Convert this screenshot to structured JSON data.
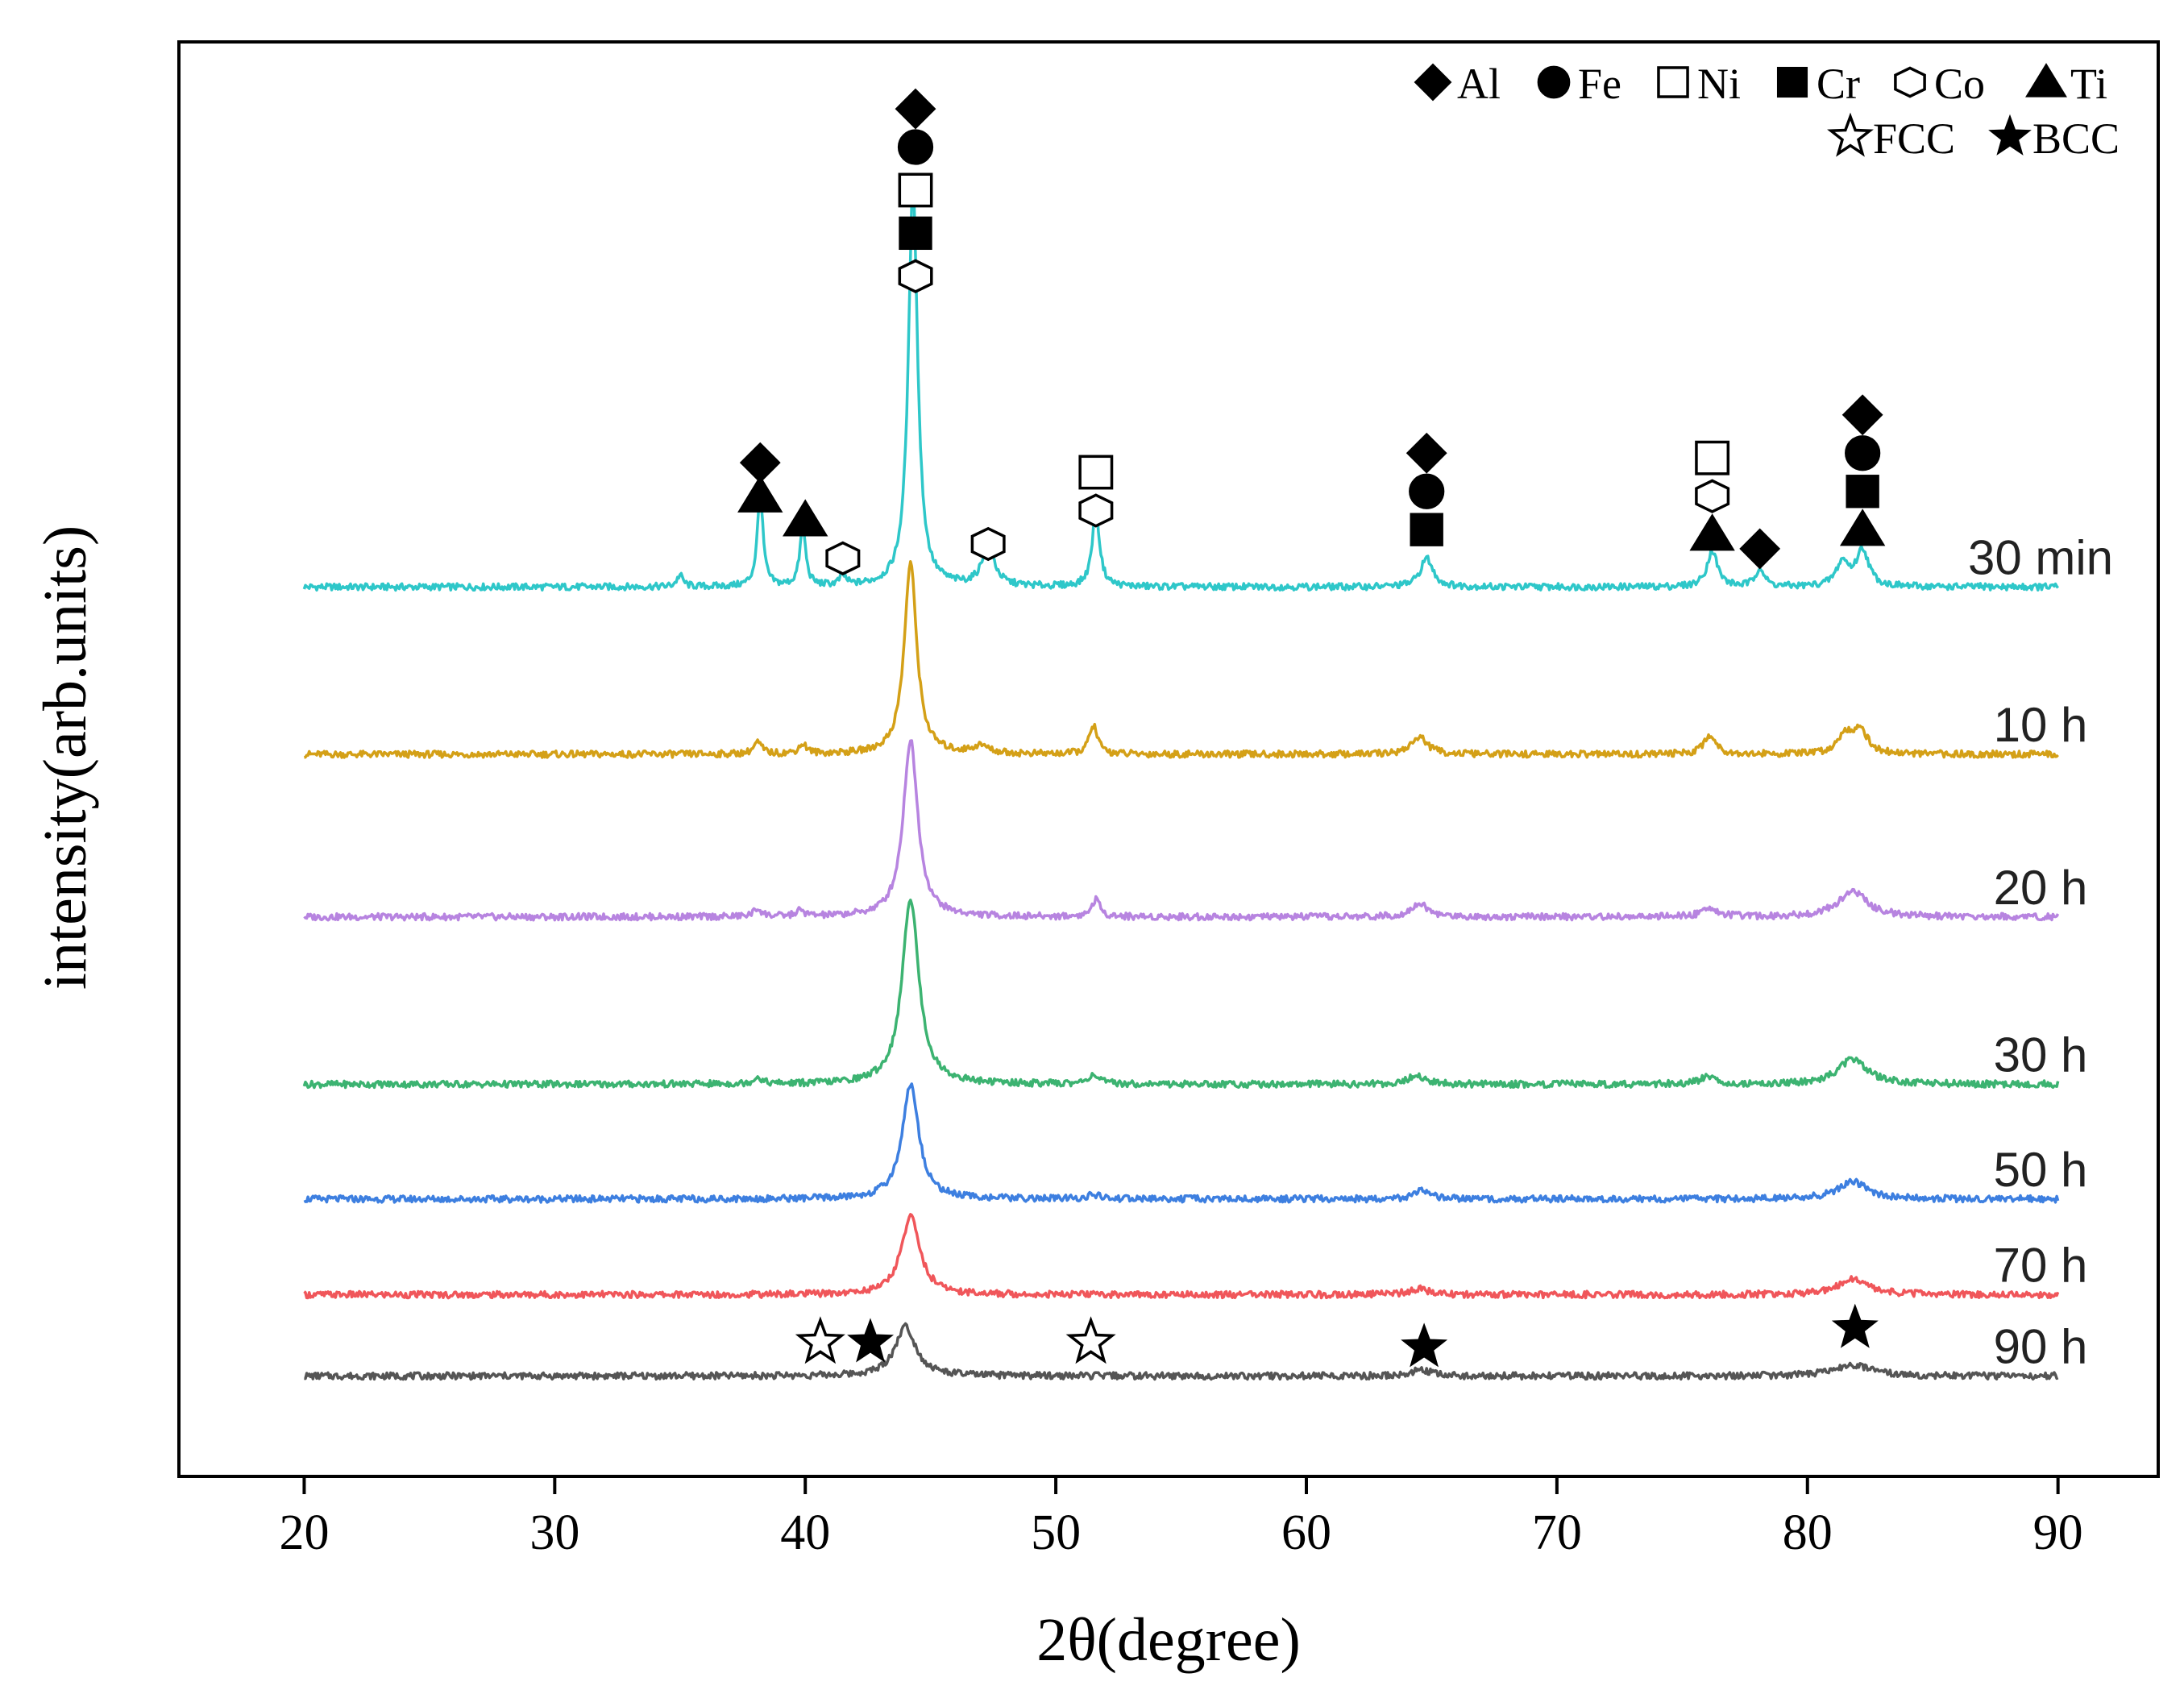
{
  "chart_data": {
    "type": "line",
    "title": "",
    "xlabel": "2θ(degree)",
    "ylabel": "intensity(arb.units)",
    "xlim": [
      15,
      94
    ],
    "x_ticks": [
      20,
      30,
      40,
      50,
      60,
      70,
      80,
      90
    ],
    "y_ticks": [],
    "grid": false,
    "curve_x_range": [
      20,
      90
    ],
    "legend": {
      "placement": "top-right",
      "row1": [
        {
          "symbol": "diamond-filled",
          "label": "Al"
        },
        {
          "symbol": "circle-filled",
          "label": "Fe"
        },
        {
          "symbol": "square-open",
          "label": "Ni"
        },
        {
          "symbol": "square-filled",
          "label": "Cr"
        },
        {
          "symbol": "hexagon-open",
          "label": "Co"
        },
        {
          "symbol": "triangle-filled",
          "label": "Ti"
        }
      ],
      "row2": [
        {
          "symbol": "star-open",
          "label": "FCC"
        },
        {
          "symbol": "star-filled",
          "label": "BCC"
        }
      ]
    },
    "series": [
      {
        "name": "30 min",
        "color": "#2ec7c9",
        "offset": 7.3,
        "peaks": [
          [
            35.0,
            0.12,
            0.15
          ],
          [
            38.2,
            0.95,
            0.14
          ],
          [
            39.9,
            0.62,
            0.14
          ],
          [
            41.5,
            0.1,
            0.15
          ],
          [
            44.3,
            4.2,
            0.22
          ],
          [
            47.3,
            0.42,
            0.3
          ],
          [
            51.6,
            0.78,
            0.18
          ],
          [
            64.8,
            0.3,
            0.3
          ],
          [
            76.2,
            0.38,
            0.25
          ],
          [
            78.1,
            0.2,
            0.2
          ],
          [
            81.4,
            0.25,
            0.3
          ],
          [
            82.2,
            0.38,
            0.3
          ]
        ]
      },
      {
        "name": "10 h",
        "color": "#d4a017",
        "offset": 5.55,
        "peaks": [
          [
            38.1,
            0.12,
            0.2
          ],
          [
            39.9,
            0.1,
            0.2
          ],
          [
            44.2,
            2.0,
            0.3
          ],
          [
            47.0,
            0.08,
            0.4
          ],
          [
            51.5,
            0.3,
            0.2
          ],
          [
            64.5,
            0.18,
            0.4
          ],
          [
            76.1,
            0.2,
            0.3
          ],
          [
            81.5,
            0.2,
            0.35
          ],
          [
            82.1,
            0.25,
            0.35
          ]
        ]
      },
      {
        "name": "20 h",
        "color": "#b784e0",
        "offset": 3.85,
        "peaks": [
          [
            38.1,
            0.08,
            0.2
          ],
          [
            39.8,
            0.06,
            0.2
          ],
          [
            44.2,
            1.85,
            0.35
          ],
          [
            51.6,
            0.18,
            0.2
          ],
          [
            64.5,
            0.14,
            0.4
          ],
          [
            76.1,
            0.1,
            0.35
          ],
          [
            81.8,
            0.27,
            0.7
          ]
        ]
      },
      {
        "name": "30 h",
        "color": "#3cb371",
        "offset": 2.1,
        "peaks": [
          [
            38.1,
            0.07,
            0.2
          ],
          [
            44.2,
            1.95,
            0.4
          ],
          [
            51.5,
            0.1,
            0.25
          ],
          [
            64.4,
            0.09,
            0.4
          ],
          [
            76.0,
            0.08,
            0.35
          ],
          [
            81.8,
            0.26,
            0.7
          ]
        ]
      },
      {
        "name": "50 h",
        "color": "#3d7fe0",
        "offset": 0.9,
        "peaks": [
          [
            44.2,
            1.2,
            0.4
          ],
          [
            51.5,
            0.04,
            0.3
          ],
          [
            64.6,
            0.08,
            0.4
          ],
          [
            81.8,
            0.18,
            0.7
          ]
        ]
      },
      {
        "name": "70 h",
        "color": "#f0565a",
        "offset": -0.1,
        "peaks": [
          [
            44.2,
            0.82,
            0.45
          ],
          [
            64.5,
            0.06,
            0.5
          ],
          [
            81.8,
            0.16,
            0.7
          ]
        ]
      },
      {
        "name": "90 h",
        "color": "#555555",
        "offset": -0.95,
        "peaks": [
          [
            44.0,
            0.52,
            0.5
          ],
          [
            64.6,
            0.07,
            0.4
          ],
          [
            81.8,
            0.12,
            0.8
          ]
        ]
      }
    ],
    "annotations": [
      {
        "x": 38.2,
        "y": 8.6,
        "symbol": "diamond-filled"
      },
      {
        "x": 38.2,
        "y": 8.25,
        "symbol": "triangle-filled"
      },
      {
        "x": 40.0,
        "y": 8.0,
        "symbol": "triangle-filled"
      },
      {
        "x": 41.5,
        "y": 7.6,
        "symbol": "hexagon-open"
      },
      {
        "x": 44.4,
        "y": 12.3,
        "symbol": "diamond-filled"
      },
      {
        "x": 44.4,
        "y": 11.9,
        "symbol": "circle-filled"
      },
      {
        "x": 44.4,
        "y": 11.45,
        "symbol": "square-open"
      },
      {
        "x": 44.4,
        "y": 11.0,
        "symbol": "square-filled"
      },
      {
        "x": 44.4,
        "y": 10.55,
        "symbol": "hexagon-open"
      },
      {
        "x": 47.3,
        "y": 7.75,
        "symbol": "hexagon-open"
      },
      {
        "x": 51.6,
        "y": 8.5,
        "symbol": "square-open"
      },
      {
        "x": 51.6,
        "y": 8.1,
        "symbol": "hexagon-open"
      },
      {
        "x": 64.8,
        "y": 8.7,
        "symbol": "diamond-filled"
      },
      {
        "x": 64.8,
        "y": 8.3,
        "symbol": "circle-filled"
      },
      {
        "x": 64.8,
        "y": 7.9,
        "symbol": "square-filled"
      },
      {
        "x": 76.2,
        "y": 8.65,
        "symbol": "square-open"
      },
      {
        "x": 76.2,
        "y": 8.25,
        "symbol": "hexagon-open"
      },
      {
        "x": 76.2,
        "y": 7.85,
        "symbol": "triangle-filled"
      },
      {
        "x": 78.1,
        "y": 7.7,
        "symbol": "diamond-filled"
      },
      {
        "x": 82.2,
        "y": 9.1,
        "symbol": "diamond-filled"
      },
      {
        "x": 82.2,
        "y": 8.7,
        "symbol": "circle-filled"
      },
      {
        "x": 82.2,
        "y": 8.3,
        "symbol": "square-filled"
      },
      {
        "x": 82.2,
        "y": 7.9,
        "symbol": "triangle-filled"
      },
      {
        "x": 40.6,
        "y": -0.6,
        "symbol": "star-open"
      },
      {
        "x": 42.6,
        "y": -0.6,
        "symbol": "star-filled"
      },
      {
        "x": 51.4,
        "y": -0.6,
        "symbol": "star-open"
      },
      {
        "x": 64.7,
        "y": -0.65,
        "symbol": "star-filled"
      },
      {
        "x": 81.9,
        "y": -0.45,
        "symbol": "star-filled"
      }
    ]
  }
}
